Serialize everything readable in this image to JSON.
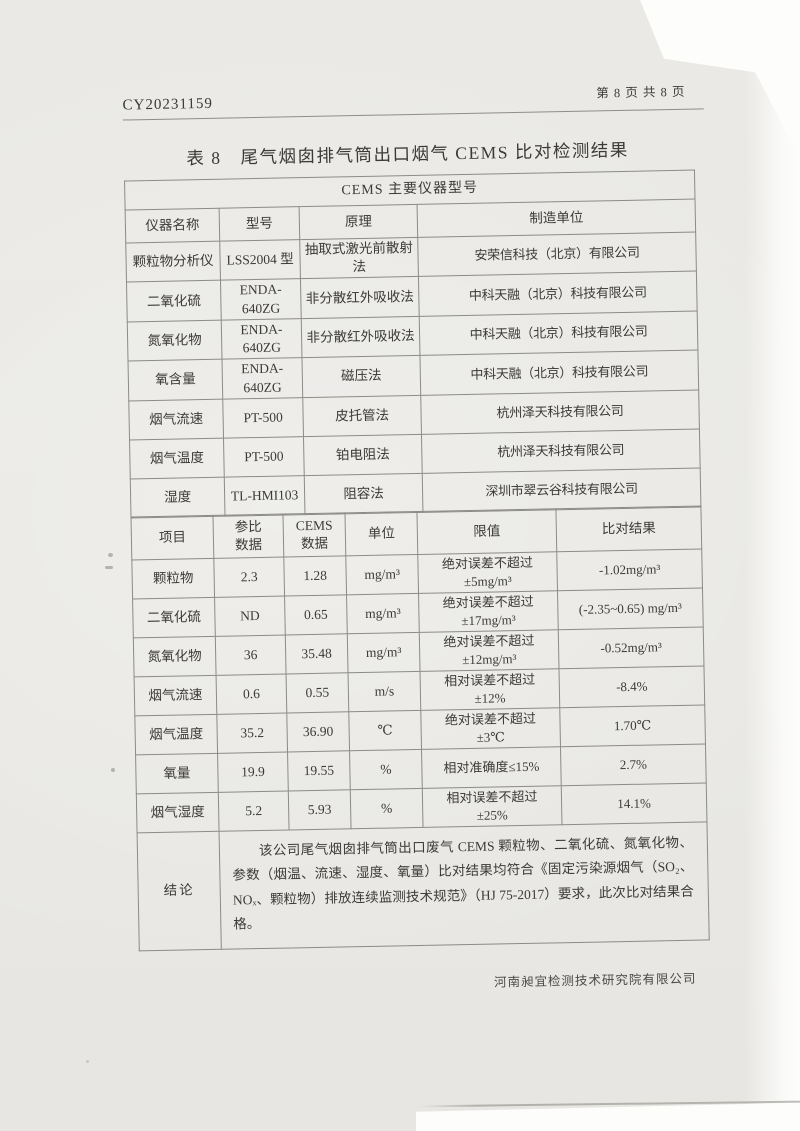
{
  "page": {
    "report_no": "CY20231159",
    "page_info": "第 8 页  共 8 页",
    "title": "表 8　尾气烟囱排气筒出口烟气 CEMS 比对检测结果",
    "footer_company": "河南昶宜检测技术研究院有限公司"
  },
  "colors": {
    "paper": "#e9e8e4",
    "scan_background": "#fdfdfc",
    "text": "#3b3a38",
    "table_line": "#8d8b87"
  },
  "instrument_table": {
    "section_title": "CEMS 主要仪器型号",
    "headers": [
      "仪器名称",
      "型号",
      "原理",
      "制造单位"
    ],
    "rows": [
      [
        "颗粒物分析仪",
        "LSS2004 型",
        "抽取式激光前散射法",
        "安荣信科技（北京）有限公司"
      ],
      [
        "二氧化硫",
        "ENDA-640ZG",
        "非分散红外吸收法",
        "中科天融（北京）科技有限公司"
      ],
      [
        "氮氧化物",
        "ENDA-640ZG",
        "非分散红外吸收法",
        "中科天融（北京）科技有限公司"
      ],
      [
        "氧含量",
        "ENDA-640ZG",
        "磁压法",
        "中科天融（北京）科技有限公司"
      ],
      [
        "烟气流速",
        "PT-500",
        "皮托管法",
        "杭州泽天科技有限公司"
      ],
      [
        "烟气温度",
        "PT-500",
        "铂电阻法",
        "杭州泽天科技有限公司"
      ],
      [
        "湿度",
        "TL-HMI103",
        "阻容法",
        "深圳市翠云谷科技有限公司"
      ]
    ]
  },
  "comparison_table": {
    "headers": [
      "项目",
      "参比\n数据",
      "CEMS\n数据",
      "单位",
      "限值",
      "比对结果"
    ],
    "rows": [
      [
        "颗粒物",
        "2.3",
        "1.28",
        "mg/m³",
        "绝对误差不超过\n±5mg/m³",
        "-1.02mg/m³"
      ],
      [
        "二氧化硫",
        "ND",
        "0.65",
        "mg/m³",
        "绝对误差不超过\n±17mg/m³",
        "(-2.35~0.65) mg/m³"
      ],
      [
        "氮氧化物",
        "36",
        "35.48",
        "mg/m³",
        "绝对误差不超过\n±12mg/m³",
        "-0.52mg/m³"
      ],
      [
        "烟气流速",
        "0.6",
        "0.55",
        "m/s",
        "相对误差不超过\n±12%",
        "-8.4%"
      ],
      [
        "烟气温度",
        "35.2",
        "36.90",
        "℃",
        "绝对误差不超过\n±3℃",
        "1.70℃"
      ],
      [
        "氧量",
        "19.9",
        "19.55",
        "%",
        "相对准确度≤15%",
        "2.7%"
      ],
      [
        "烟气湿度",
        "5.2",
        "5.93",
        "%",
        "相对误差不超过\n±25%",
        "14.1%"
      ]
    ],
    "conclusion_label": "结论",
    "conclusion_text": "该公司尾气烟囱排气筒出口废气 CEMS 颗粒物、二氧化硫、氮氧化物、参数（烟温、流速、湿度、氧量）比对结果均符合《固定污染源烟气（SO₂、NOₓ、颗粒物）排放连续监测技术规范》（HJ 75-2017）要求，此次比对结果合格。"
  }
}
